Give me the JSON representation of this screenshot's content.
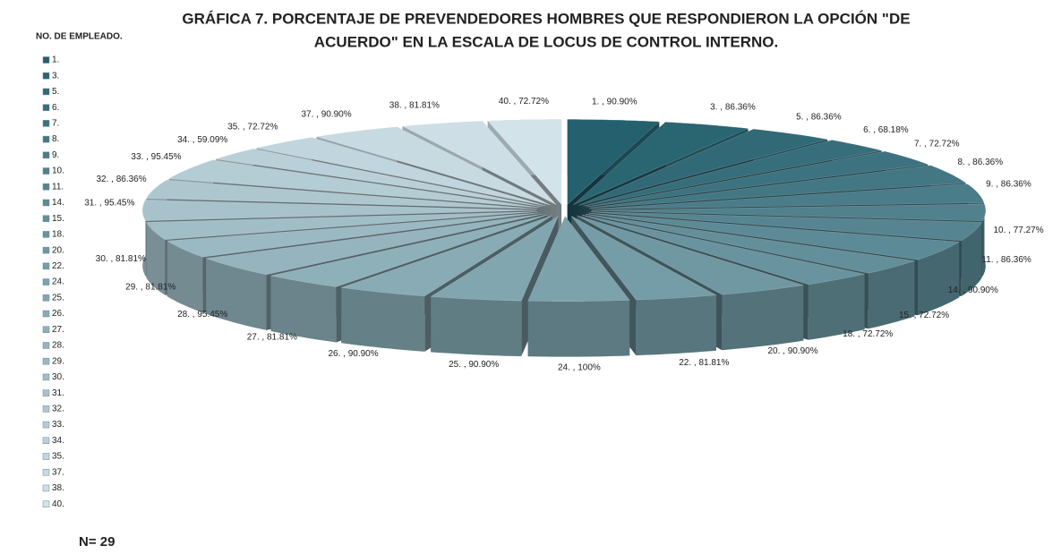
{
  "chart_data": {
    "type": "pie3d",
    "title_lines": [
      "GRÁFICA 7.   PORCENTAJE DE PREVENDEDORES HOMBRES QUE RESPONDIERON LA OPCIÓN  \"DE",
      "ACUERDO\"  EN LA ESCALA DE LOCUS DE CONTROL INTERNO."
    ],
    "legend_title": "NO. DE EMPLEADO.",
    "annotation": "N= 29",
    "categories": [
      "1.",
      "3.",
      "5.",
      "6.",
      "7.",
      "8.",
      "9.",
      "10.",
      "11.",
      "14.",
      "15.",
      "18.",
      "20.",
      "22.",
      "24.",
      "25.",
      "26.",
      "27.",
      "28.",
      "29.",
      "30.",
      "31.",
      "32.",
      "33.",
      "34.",
      "35.",
      "37.",
      "38.",
      "40."
    ],
    "values": [
      90.9,
      86.36,
      86.36,
      68.18,
      72.72,
      86.36,
      86.36,
      77.27,
      86.36,
      90.9,
      72.72,
      72.72,
      90.9,
      81.81,
      100,
      90.9,
      90.9,
      81.81,
      95.45,
      81.81,
      81.81,
      95.45,
      86.36,
      95.45,
      59.09,
      72.72,
      90.9,
      81.81,
      72.72
    ],
    "value_labels": [
      "1. , 90.90%",
      "3. , 86.36%",
      "5. , 86.36%",
      "6. , 68.18%",
      "7. , 72.72%",
      "8. , 86.36%",
      "9. , 86.36%",
      "10. , 77.27%",
      "11. , 86.36%",
      "14. , 90.90%",
      "15. , 72.72%",
      "18. , 72.72%",
      "20. , 90.90%",
      "22. , 81.81%",
      "24. , 100%",
      "25. , 90.90%",
      "26. , 90.90%",
      "27. , 81.81%",
      "28. , 95.45%",
      "29. , 81.81%",
      "30. , 81.81%",
      "31. , 95.45%",
      "32. , 86.36%",
      "33. , 95.45%",
      "34. , 59.09%",
      "35. , 72.72%",
      "37. , 90.90%",
      "38. , 81.81%",
      "40. , 72.72%"
    ],
    "color_start": "#24606e",
    "color_end": "#d3e3ea",
    "legend": "left"
  }
}
